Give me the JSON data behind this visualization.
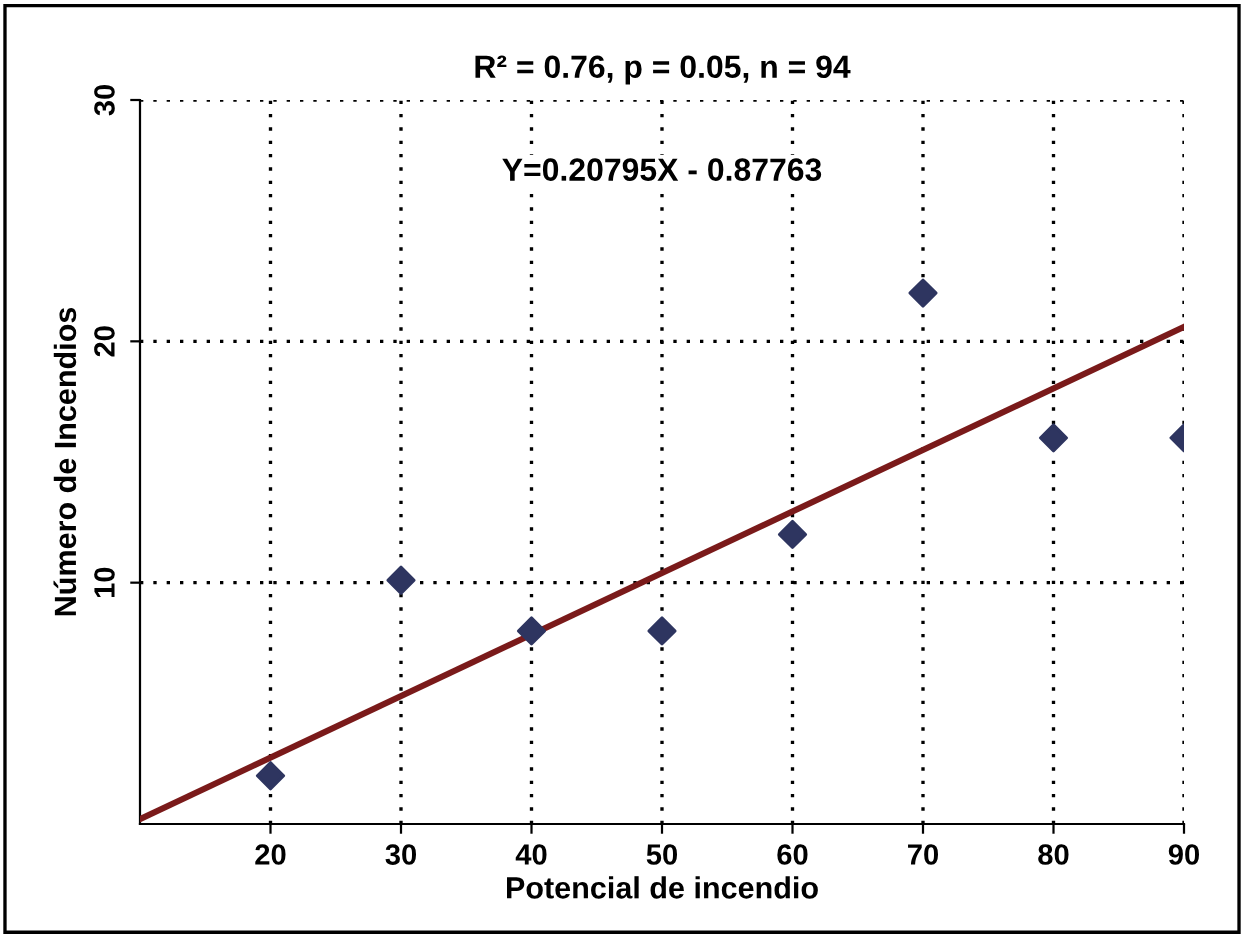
{
  "chart_data": {
    "type": "scatter",
    "title": "R² = 0.76, p = 0.05, n = 94",
    "xlabel": "Potencial de incendio",
    "ylabel": "Número de Incendios",
    "annotations": [
      "Y=0.20795X - 0.87763"
    ],
    "xlim": [
      10,
      90
    ],
    "xticks": [
      20,
      30,
      40,
      50,
      60,
      70,
      80,
      90
    ],
    "ylim": [
      0,
      30
    ],
    "yticks": [
      10,
      20,
      30
    ],
    "grid": true,
    "marker": "diamond",
    "series": [
      {
        "color": "#2e3560",
        "x": [
          20,
          30,
          40,
          50,
          60,
          70,
          80,
          90
        ],
        "values": [
          2,
          10.1,
          8,
          8,
          12,
          22,
          16,
          16
        ]
      },
      {
        "type": "line",
        "color": "#7a1a1a",
        "x": [
          10,
          90
        ],
        "values": [
          0.2,
          20.6
        ],
        "marker": "none",
        "line_style": "solid"
      }
    ]
  }
}
